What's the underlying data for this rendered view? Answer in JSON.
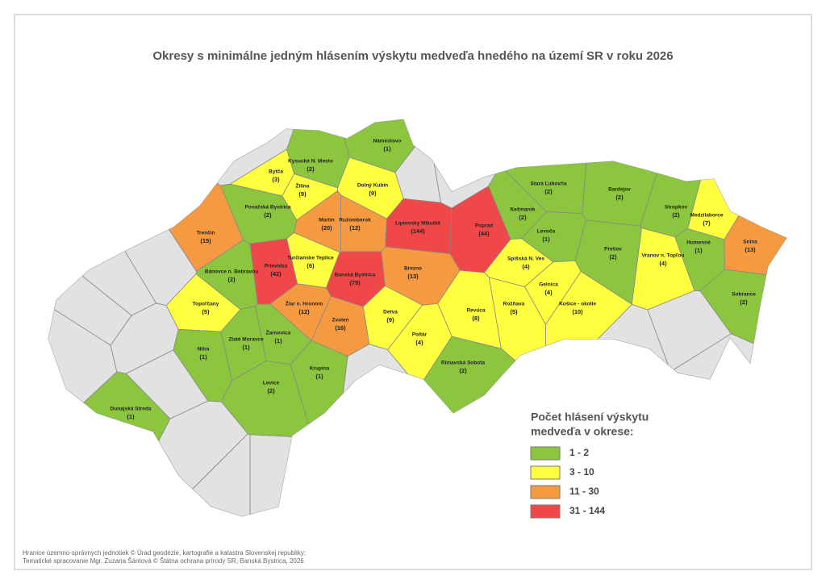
{
  "title": "Okresy s minimálne jedným hlásením výskytu medveďa hnedého na území SR v roku 2026",
  "districts": [
    {
      "name": "Námestovo",
      "count": 1,
      "count_label": "(1)"
    },
    {
      "name": "Bytča",
      "count": 3,
      "count_label": "(3)"
    },
    {
      "name": "Kysucké N. Mesto",
      "count": 2,
      "count_label": "(2)"
    },
    {
      "name": "Žilina",
      "count": 9,
      "count_label": "(9)"
    },
    {
      "name": "Považská Bystrica",
      "count": 2,
      "count_label": "(2)"
    },
    {
      "name": "Dolný Kubín",
      "count": 9,
      "count_label": "(9)"
    },
    {
      "name": "Martin",
      "count": 20,
      "count_label": "(20)"
    },
    {
      "name": "Ružomberok",
      "count": 12,
      "count_label": "(12)"
    },
    {
      "name": "Liptovský Mikuláš",
      "count": 144,
      "count_label": "(144)"
    },
    {
      "name": "Poprad",
      "count": 44,
      "count_label": "(44)"
    },
    {
      "name": "Stará Ľubovňa",
      "count": 2,
      "count_label": "(2)"
    },
    {
      "name": "Bardejov",
      "count": 2,
      "count_label": "(2)"
    },
    {
      "name": "Stropkov",
      "count": 2,
      "count_label": "(2)"
    },
    {
      "name": "Medzilaborce",
      "count": 7,
      "count_label": "(7)"
    },
    {
      "name": "Kežmarok",
      "count": 2,
      "count_label": "(2)"
    },
    {
      "name": "Levoča",
      "count": 1,
      "count_label": "(1)"
    },
    {
      "name": "Prešov",
      "count": 2,
      "count_label": "(2)"
    },
    {
      "name": "Humenné",
      "count": 1,
      "count_label": "(1)"
    },
    {
      "name": "Snina",
      "count": 13,
      "count_label": "(13)"
    },
    {
      "name": "Vranov n. Topľou",
      "count": 4,
      "count_label": "(4)"
    },
    {
      "name": "Trenčín",
      "count": 15,
      "count_label": "(15)"
    },
    {
      "name": "Prievidza",
      "count": 42,
      "count_label": "(42)"
    },
    {
      "name": "Turčianske Teplice",
      "count": 6,
      "count_label": "(6)"
    },
    {
      "name": "Bánovce n. Bebravou",
      "count": 2,
      "count_label": "(2)"
    },
    {
      "name": "Banská Bystrica",
      "count": 79,
      "count_label": "(79)"
    },
    {
      "name": "Brezno",
      "count": 13,
      "count_label": "(13)"
    },
    {
      "name": "Spišská N. Ves",
      "count": 4,
      "count_label": "(4)"
    },
    {
      "name": "Gelnica",
      "count": 4,
      "count_label": "(4)"
    },
    {
      "name": "Sobrance",
      "count": 2,
      "count_label": "(2)"
    },
    {
      "name": "Topoľčany",
      "count": 5,
      "count_label": "(5)"
    },
    {
      "name": "Žiar n. Hronom",
      "count": 12,
      "count_label": "(12)"
    },
    {
      "name": "Zvolen",
      "count": 16,
      "count_label": "(16)"
    },
    {
      "name": "Detva",
      "count": 9,
      "count_label": "(9)"
    },
    {
      "name": "Revúca",
      "count": 8,
      "count_label": "(8)"
    },
    {
      "name": "Rožňava",
      "count": 5,
      "count_label": "(5)"
    },
    {
      "name": "Košice - okolie",
      "count": 10,
      "count_label": "(10)"
    },
    {
      "name": "Zlaté Moravce",
      "count": 1,
      "count_label": "(1)"
    },
    {
      "name": "Žarnovica",
      "count": 1,
      "count_label": "(1)"
    },
    {
      "name": "Nitra",
      "count": 1,
      "count_label": "(1)"
    },
    {
      "name": "Poltár",
      "count": 4,
      "count_label": "(4)"
    },
    {
      "name": "Krupina",
      "count": 1,
      "count_label": "(1)"
    },
    {
      "name": "Levice",
      "count": 2,
      "count_label": "(2)"
    },
    {
      "name": "Rimavská Sobota",
      "count": 2,
      "count_label": "(2)"
    },
    {
      "name": "Dunajská Streda",
      "count": 1,
      "count_label": "(1)"
    }
  ],
  "legend": {
    "title": [
      "Počet hlásení výskytu",
      "medveďa v okrese:"
    ],
    "items": [
      {
        "label": "1 - 2",
        "color": "#8cc63f"
      },
      {
        "label": "3 - 10",
        "color": "#ffff40"
      },
      {
        "label": "11 - 30",
        "color": "#f59a40"
      },
      {
        "label": "31 - 144",
        "color": "#f04848"
      }
    ]
  },
  "credits": [
    "Hranice územno-správnych jednotiek © Úrad geodézie, kartografie a katastra Slovenskej republiky;",
    "Tematické spracovanie Mgr. Zuzana Šántová © Štátna ochrana prírody SR, Banská Bystrica, 2026"
  ]
}
